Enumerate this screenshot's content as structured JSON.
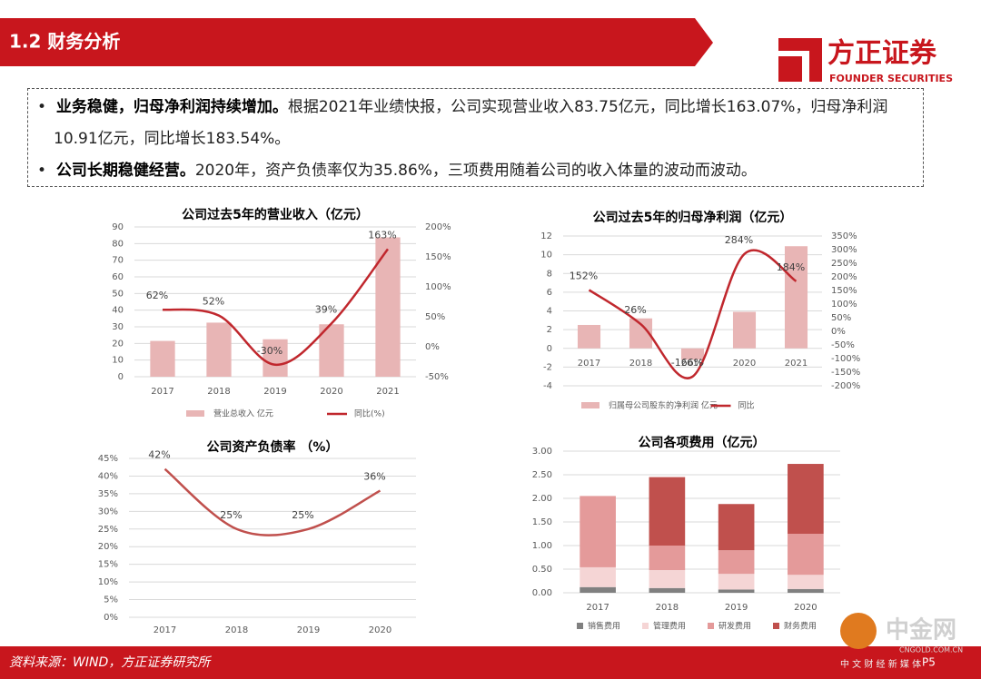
{
  "header": {
    "title": "1.2 财务分析",
    "logo": "方正证券",
    "logo_en": "FOUNDER SECURITIES"
  },
  "bullets": [
    {
      "bold": "业务稳健，归母净利润持续增加。",
      "text": "根据2021年业绩快报，公司实现营业收入83.75亿元，同比增长163.07%，归母净利润10.91亿元，同比增长183.54%。"
    },
    {
      "bold": "公司长期稳健经营。",
      "text": "2020年，资产负债率仅为35.86%，三项费用随着公司的收入体量的波动而波动。"
    }
  ],
  "footer": {
    "source": "资料来源：WIND，方正证券研究所",
    "page": "P5"
  },
  "watermark": {
    "name": "中金网",
    "url": "CNGOLD.COM.CN",
    "slogan": "中 文 财 经 新 媒 体"
  },
  "chart_data": [
    {
      "type": "bar",
      "title": "公司过去5年的营业收入（亿元）",
      "categories": [
        "2017",
        "2018",
        "2019",
        "2020",
        "2021"
      ],
      "series": [
        {
          "name": "营业总收入 亿元",
          "color": "#e8b5b5",
          "values": [
            21.5,
            32.5,
            22.5,
            31.5,
            83.75
          ]
        },
        {
          "name": "同比(%)",
          "color": "#c0272d",
          "type": "line",
          "axis": "y2",
          "values": [
            62,
            52,
            -30,
            39,
            163
          ],
          "value_labels": [
            "62%",
            "52%",
            "-30%",
            "39%",
            "163%"
          ]
        }
      ],
      "ylim": [
        0,
        90
      ],
      "yticks": [
        0,
        10,
        20,
        30,
        40,
        50,
        60,
        70,
        80,
        90
      ],
      "y2lim": [
        -50,
        200
      ],
      "y2ticks": [
        {
          "value": -50,
          "label": "-50%"
        },
        {
          "value": 0,
          "label": "0%"
        },
        {
          "value": 50,
          "label": "50%"
        },
        {
          "value": 100,
          "label": "100%"
        },
        {
          "value": 150,
          "label": "150%"
        },
        {
          "value": 200,
          "label": "200%"
        }
      ],
      "grid": true
    },
    {
      "type": "bar",
      "title": "公司过去5年的归母净利润（亿元）",
      "categories": [
        "2017",
        "2018",
        "2019",
        "2020",
        "2021"
      ],
      "series": [
        {
          "name": "归属母公司股东的净利润 亿元",
          "color": "#e8b5b5",
          "values": [
            2.5,
            3.2,
            -1.2,
            3.9,
            10.91
          ]
        },
        {
          "name": "同比",
          "color": "#c0272d",
          "type": "line",
          "axis": "y2",
          "values": [
            152,
            26,
            -166,
            284,
            184
          ],
          "value_labels": [
            "152%",
            "26%",
            "-166%",
            "284%",
            "184%"
          ]
        }
      ],
      "ylim": [
        -4,
        12
      ],
      "yticks": [
        -4,
        -2,
        0,
        2,
        4,
        6,
        8,
        10,
        12
      ],
      "y2lim": [
        -200,
        350
      ],
      "y2ticks": [
        {
          "value": -200,
          "label": "-200%"
        },
        {
          "value": -150,
          "label": "-150%"
        },
        {
          "value": -100,
          "label": "-100%"
        },
        {
          "value": -50,
          "label": "-50%"
        },
        {
          "value": 0,
          "label": "0%"
        },
        {
          "value": 50,
          "label": "50%"
        },
        {
          "value": 100,
          "label": "100%"
        },
        {
          "value": 150,
          "label": "150%"
        },
        {
          "value": 200,
          "label": "200%"
        },
        {
          "value": 250,
          "label": "250%"
        },
        {
          "value": 300,
          "label": "300%"
        },
        {
          "value": 350,
          "label": "350%"
        }
      ],
      "grid": true
    },
    {
      "type": "line",
      "title": "公司资产负债率 （%）",
      "categories": [
        "2017",
        "2018",
        "2019",
        "2020"
      ],
      "series": [
        {
          "name": "资产负债率",
          "color": "#c0504d",
          "values": [
            42,
            25,
            25,
            35.86
          ],
          "value_labels": [
            "42%",
            "25%",
            "25%",
            "36%"
          ]
        }
      ],
      "ylim": [
        0,
        45
      ],
      "yticks": [
        {
          "value": 0,
          "label": "0%"
        },
        {
          "value": 5,
          "label": "5%"
        },
        {
          "value": 10,
          "label": "10%"
        },
        {
          "value": 15,
          "label": "15%"
        },
        {
          "value": 20,
          "label": "20%"
        },
        {
          "value": 25,
          "label": "25%"
        },
        {
          "value": 30,
          "label": "30%"
        },
        {
          "value": 35,
          "label": "35%"
        },
        {
          "value": 40,
          "label": "40%"
        },
        {
          "value": 45,
          "label": "45%"
        }
      ],
      "grid": true,
      "legend": false
    },
    {
      "type": "stacked_bar",
      "title": "公司各项费用（亿元）",
      "categories": [
        "2017",
        "2018",
        "2019",
        "2020"
      ],
      "series": [
        {
          "name": "销售费用",
          "color": "#808080",
          "values": [
            0.12,
            0.1,
            0.07,
            0.08
          ]
        },
        {
          "name": "管理费用",
          "color": "#f5d5d5",
          "values": [
            0.42,
            0.38,
            0.33,
            0.3
          ]
        },
        {
          "name": "研发费用",
          "color": "#e49a9a",
          "values": [
            1.51,
            0.52,
            0.5,
            0.87
          ]
        },
        {
          "name": "财务费用",
          "color": "#c0504d",
          "values": [
            0,
            1.45,
            0.98,
            1.48
          ]
        }
      ],
      "ylim": [
        0,
        3
      ],
      "yticks": [
        {
          "value": 0,
          "label": "0.00"
        },
        {
          "value": 0.5,
          "label": "0.50"
        },
        {
          "value": 1,
          "label": "1.00"
        },
        {
          "value": 1.5,
          "label": "1.50"
        },
        {
          "value": 2,
          "label": "2.00"
        },
        {
          "value": 2.5,
          "label": "2.50"
        },
        {
          "value": 3,
          "label": "3.00"
        }
      ],
      "grid": true
    }
  ]
}
